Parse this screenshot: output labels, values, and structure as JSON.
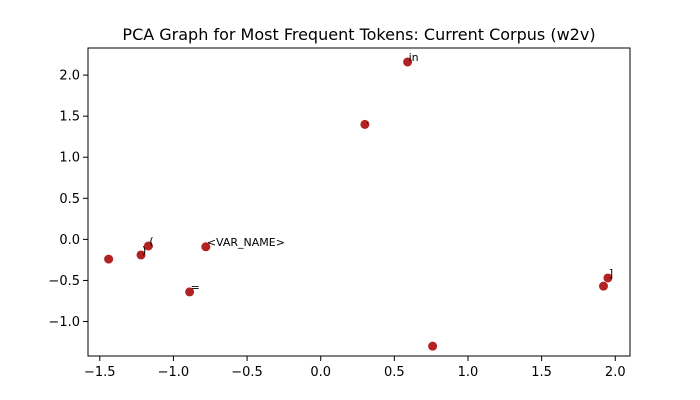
{
  "chart_data": {
    "type": "scatter",
    "title": "PCA Graph for Most Frequent Tokens: Current Corpus (w2v)",
    "xlabel": "",
    "ylabel": "",
    "xlim": [
      -1.58,
      2.1
    ],
    "ylim": [
      -1.42,
      2.33
    ],
    "xticks": [
      -1.5,
      -1.0,
      -0.5,
      0.0,
      0.5,
      1.0,
      1.5,
      2.0
    ],
    "yticks": [
      -1.0,
      -0.5,
      0.0,
      0.5,
      1.0,
      1.5,
      2.0
    ],
    "xtick_labels": [
      "−1.5",
      "−1.0",
      "−0.5",
      "0.0",
      "0.5",
      "1.0",
      "1.5",
      "2.0"
    ],
    "ytick_labels": [
      "−1.0",
      "−0.5",
      "0.0",
      "0.5",
      "1.0",
      "1.5",
      "2.0"
    ],
    "grid": false,
    "marker_color": "#b22222",
    "points": [
      {
        "x": -1.44,
        "y": -0.24,
        "label": ""
      },
      {
        "x": -1.22,
        "y": -0.19,
        "label": ")"
      },
      {
        "x": -1.17,
        "y": -0.08,
        "label": "("
      },
      {
        "x": -0.89,
        "y": -0.64,
        "label": "="
      },
      {
        "x": -0.78,
        "y": -0.09,
        "label": "<VAR_NAME>"
      },
      {
        "x": 0.3,
        "y": 1.4,
        "label": "."
      },
      {
        "x": 0.59,
        "y": 2.16,
        "label": "in"
      },
      {
        "x": 0.76,
        "y": -1.3,
        "label": ""
      },
      {
        "x": 1.92,
        "y": -0.57,
        "label": ""
      },
      {
        "x": 1.95,
        "y": -0.47,
        "label": "]"
      }
    ]
  }
}
